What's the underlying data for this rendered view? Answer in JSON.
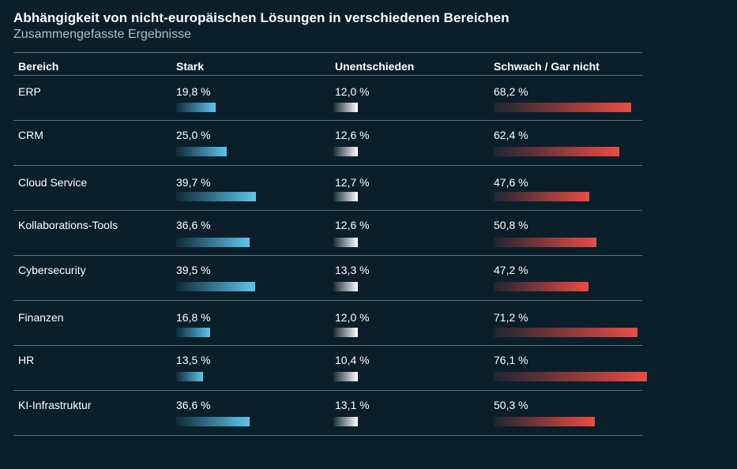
{
  "title": "Abhängigkeit von nicht-europäischen Lösungen in verschiedenen Bereichen",
  "subtitle": "Zusammengefasste Ergebnisse",
  "colors": {
    "background": "#0b1f2b",
    "strong": "#5cc6ee",
    "undecided": "#ffffff",
    "weak": "#ee4b43",
    "rule": "#5e7583"
  },
  "chart_data": {
    "type": "table",
    "title": "Abhängigkeit von nicht-europäischen Lösungen in verschiedenen Bereichen",
    "subtitle": "Zusammengefasste Ergebnisse",
    "columns": [
      "Bereich",
      "Stark",
      "Unentschieden",
      "Schwach / Gar nicht"
    ],
    "rows": [
      {
        "label": "ERP",
        "strong": 19.8,
        "undecided": 12.0,
        "weak": 68.2,
        "strong_text": "19,8 %",
        "undecided_text": "12,0 %",
        "weak_text": "68,2 %"
      },
      {
        "label": "CRM",
        "strong": 25.0,
        "undecided": 12.6,
        "weak": 62.4,
        "strong_text": "25,0 %",
        "undecided_text": "12,6 %",
        "weak_text": "62,4 %"
      },
      {
        "label": "Cloud Service",
        "strong": 39.7,
        "undecided": 12.7,
        "weak": 47.6,
        "strong_text": "39,7 %",
        "undecided_text": "12,7 %",
        "weak_text": "47,6 %"
      },
      {
        "label": "Kollaborations-Tools",
        "strong": 36.6,
        "undecided": 12.6,
        "weak": 50.8,
        "strong_text": "36,6 %",
        "undecided_text": "12,6 %",
        "weak_text": "50,8 %"
      },
      {
        "label": "Cybersecurity",
        "strong": 39.5,
        "undecided": 13.3,
        "weak": 47.2,
        "strong_text": "39,5 %",
        "undecided_text": "13,3 %",
        "weak_text": "47,2 %"
      },
      {
        "label": "Finanzen",
        "strong": 16.8,
        "undecided": 12.0,
        "weak": 71.2,
        "strong_text": "16,8 %",
        "undecided_text": "12,0 %",
        "weak_text": "71,2 %"
      },
      {
        "label": "HR",
        "strong": 13.5,
        "undecided": 10.4,
        "weak": 76.1,
        "strong_text": "13,5 %",
        "undecided_text": "10,4 %",
        "weak_text": "76,1 %"
      },
      {
        "label": "KI-Infrastruktur",
        "strong": 36.6,
        "undecided": 13.1,
        "weak": 50.3,
        "strong_text": "36,6 %",
        "undecided_text": "13,1 %",
        "weak_text": "50,3 %"
      }
    ]
  }
}
